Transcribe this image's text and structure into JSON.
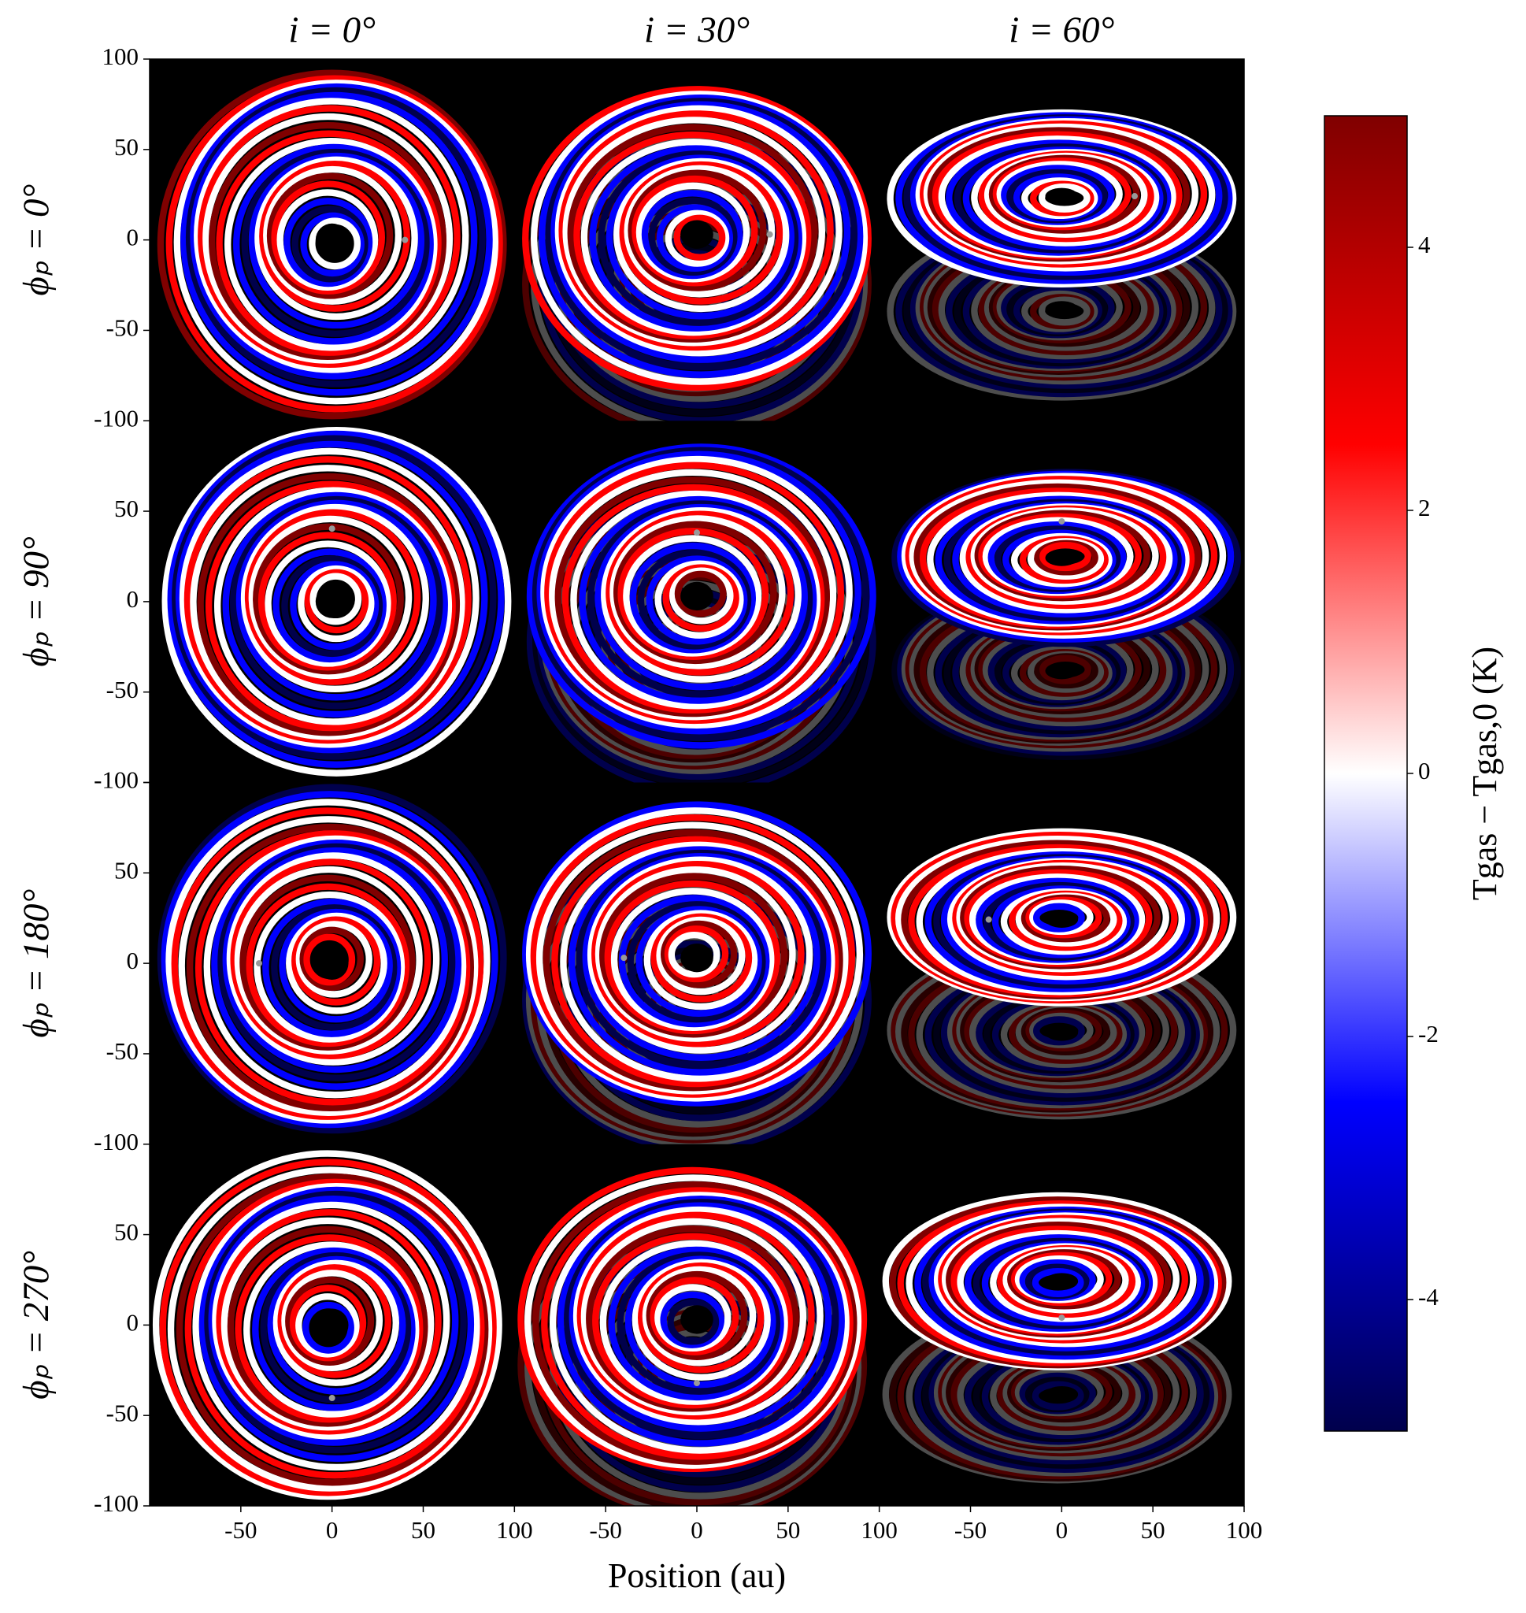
{
  "chart_data": {
    "type": "image-grid",
    "columns": [
      "i = 0°",
      "i = 30°",
      "i = 60°"
    ],
    "rows": [
      "ϕₚ = 0°",
      "ϕₚ = 90°",
      "ϕₚ = 180°",
      "ϕₚ = 270°"
    ],
    "xlabel": "Position (au)",
    "xlim": [
      -100,
      100
    ],
    "ylim": [
      -100,
      100
    ],
    "xticks": [
      -50,
      0,
      50,
      100
    ],
    "yticks": [
      -100,
      -50,
      0,
      50,
      100
    ],
    "colorbar": {
      "label": "Tgas − Tgas,0 (K)",
      "lim": [
        -5,
        5
      ],
      "ticks": [
        -4,
        -2,
        0,
        2,
        4
      ],
      "colors": [
        "#00004c",
        "#0000ff",
        "#ffffff",
        "#ff0000",
        "#800000"
      ]
    }
  }
}
